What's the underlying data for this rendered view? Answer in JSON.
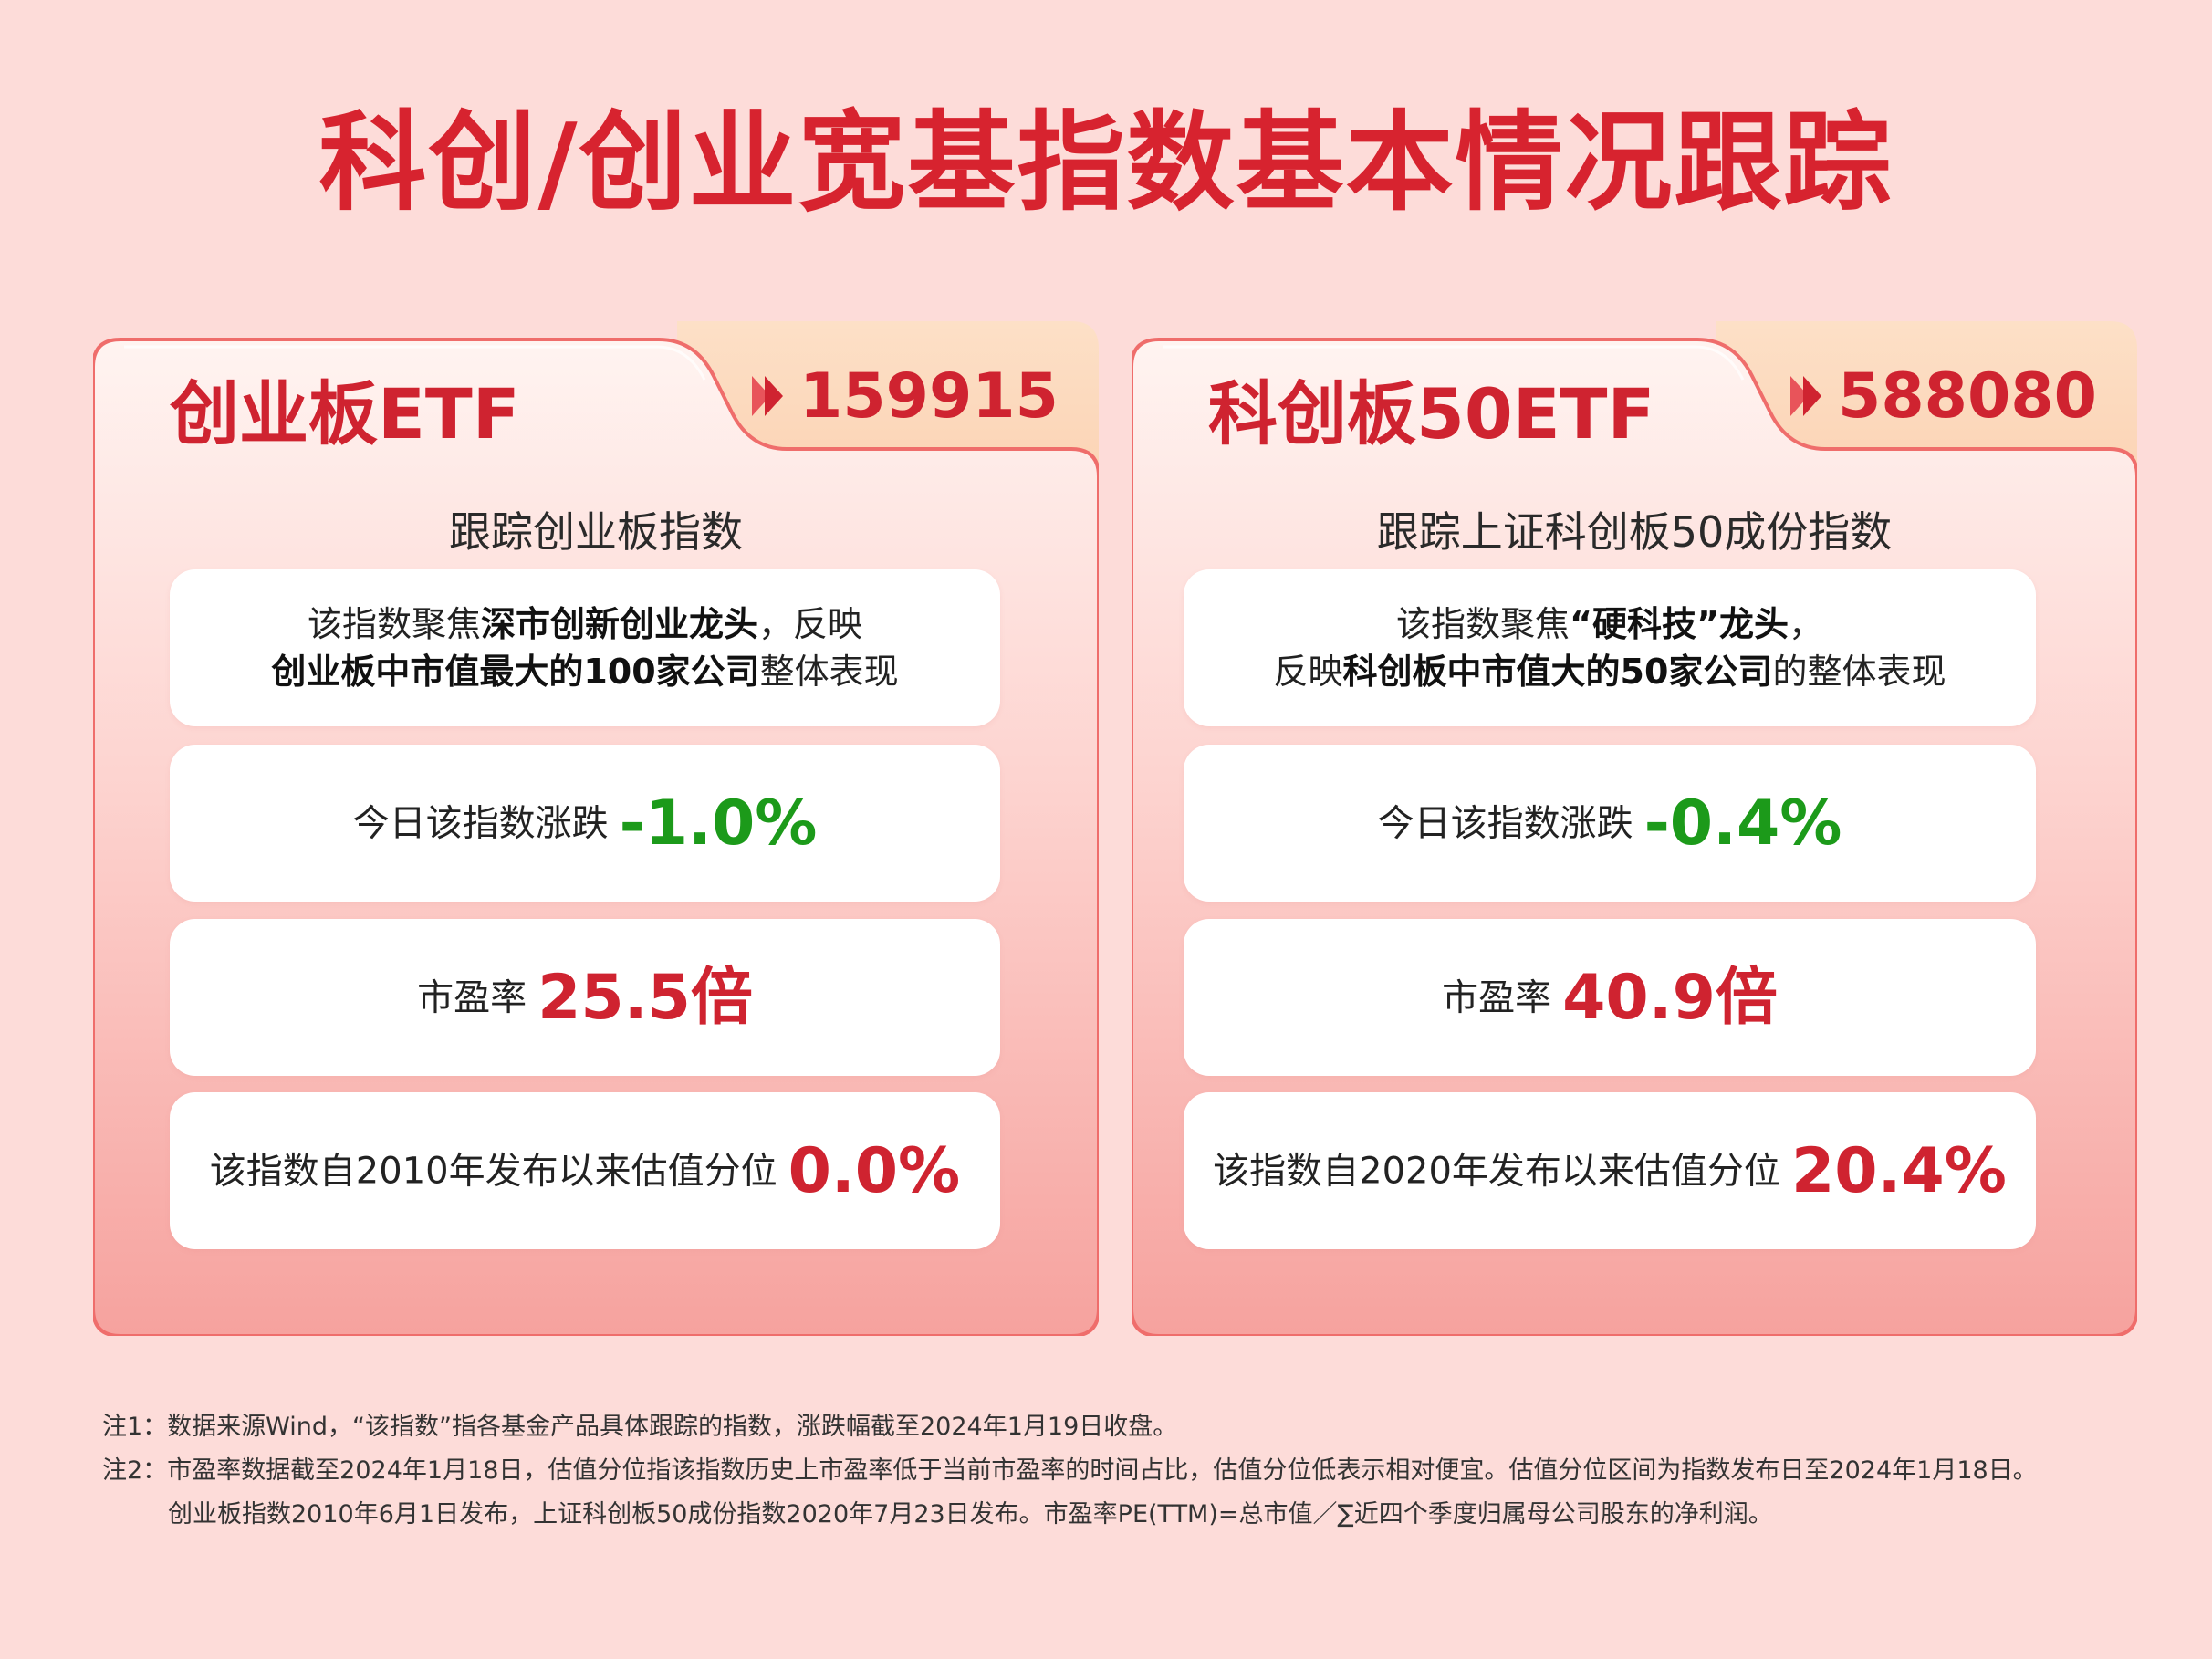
{
  "title": "科创/创业宽基指数基本情况跟踪",
  "colors": {
    "background": "#fddcd9",
    "accent_red": "#d7232f",
    "down_green": "#1c9a1a",
    "tab_orange": "#fddcbd"
  },
  "cards": [
    {
      "name": "创业板ETF",
      "code": "159915",
      "subtitle": "跟踪创业板指数",
      "desc_line1_a": "该指数聚焦",
      "desc_line1_b": "深市创新创业龙头",
      "desc_line1_c": "，反映",
      "desc_line2_a": "",
      "desc_line2_b": "创业板中市值最大的100家公司",
      "desc_line2_c": "整体表现",
      "change_label": "今日该指数涨跌",
      "change_value": "-1.0%",
      "pe_label": "市盈率",
      "pe_value": "25.5倍",
      "pct_label": "该指数自2010年发布以来估值分位",
      "pct_value": "0.0%"
    },
    {
      "name": "科创板50ETF",
      "code": "588080",
      "subtitle": "跟踪上证科创板50成份指数",
      "desc_line1_a": "该指数聚焦",
      "desc_line1_b": "“硬科技”龙头",
      "desc_line1_c": "，",
      "desc_line2_a": "反映",
      "desc_line2_b": "科创板中市值大的50家公司",
      "desc_line2_c": "的整体表现",
      "change_label": "今日该指数涨跌",
      "change_value": "-0.4%",
      "pe_label": "市盈率",
      "pe_value": "40.9倍",
      "pct_label": "该指数自2020年发布以来估值分位",
      "pct_value": "20.4%"
    }
  ],
  "notes": [
    "注1：数据来源Wind，“该指数”指各基金产品具体跟踪的指数，涨跌幅截至2024年1月19日收盘。",
    "注2：市盈率数据截至2024年1月18日，估值分位指该指数历史上市盈率低于当前市盈率的时间占比，估值分位低表示相对便宜。估值分位区间为指数发布日至2024年1月18日。",
    "创业板指数2010年6月1日发布，上证科创板50成份指数2020年7月23日发布。市盈率PE(TTM)=总市值／∑近四个季度归属母公司股东的净利润。"
  ]
}
